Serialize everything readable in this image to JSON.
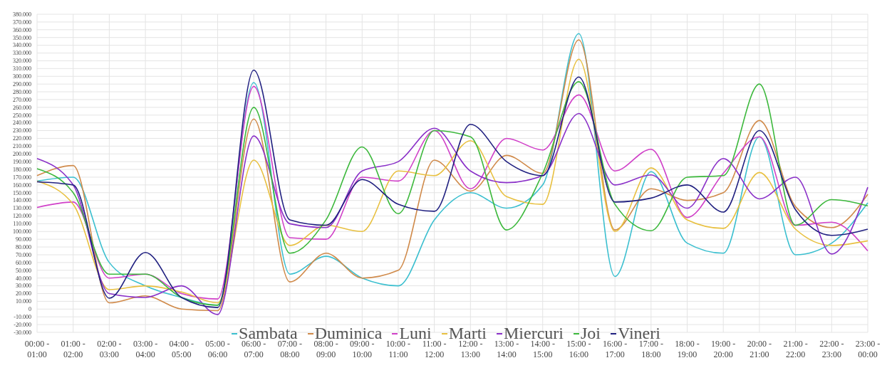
{
  "chart_data": {
    "type": "line",
    "categories": [
      "00:00 - 01:00",
      "01:00 - 02:00",
      "02:00 - 03:00",
      "03:00 - 04:00",
      "04:00 - 05:00",
      "05:00 - 06:00",
      "06:00 - 07:00",
      "07:00 - 08:00",
      "08:00 - 09:00",
      "09:00 - 10:00",
      "10:00 - 11:00",
      "11:00 - 12:00",
      "12:00 - 13:00",
      "13:00 - 14:00",
      "14:00 - 15:00",
      "15:00 - 16:00",
      "16:00 - 17:00",
      "17:00 - 18:00",
      "18:00 - 19:00",
      "19:00 - 20:00",
      "20:00 - 21:00",
      "21:00 - 22:00",
      "22:00 - 23:00",
      "23:00 - 00:00"
    ],
    "series": [
      {
        "name": "Sambata",
        "color": "#3bbfcf",
        "values": [
          165000,
          170000,
          60000,
          30000,
          15000,
          5000,
          292000,
          45000,
          68000,
          40000,
          30000,
          115000,
          150000,
          130000,
          160000,
          355000,
          42000,
          177000,
          85000,
          72000,
          222000,
          70000,
          85000,
          137000
        ]
      },
      {
        "name": "Duminica",
        "color": "#d08a4a",
        "values": [
          172000,
          185000,
          8000,
          17000,
          0,
          -2000,
          245000,
          35000,
          72000,
          40000,
          50000,
          192000,
          152000,
          198000,
          175000,
          347000,
          102000,
          155000,
          140000,
          150000,
          243000,
          132000,
          105000,
          148000
        ]
      },
      {
        "name": "Luni",
        "color": "#d040c8",
        "values": [
          131000,
          138000,
          40000,
          45000,
          20000,
          13000,
          287000,
          92000,
          90000,
          170000,
          165000,
          230000,
          155000,
          220000,
          205000,
          276000,
          178000,
          206000,
          118000,
          175000,
          222000,
          108000,
          112000,
          75000
        ]
      },
      {
        "name": "Marti",
        "color": "#e8c040",
        "values": [
          165000,
          135000,
          25000,
          30000,
          22000,
          8000,
          192000,
          82000,
          108000,
          100000,
          178000,
          172000,
          217000,
          145000,
          135000,
          322000,
          100000,
          182000,
          115000,
          104000,
          176000,
          103000,
          82000,
          88000
        ]
      },
      {
        "name": "Miercuri",
        "color": "#8a30c8",
        "values": [
          194000,
          160000,
          20000,
          15000,
          30000,
          -7000,
          223000,
          110000,
          105000,
          178000,
          190000,
          233000,
          178000,
          163000,
          172000,
          252000,
          160000,
          173000,
          130000,
          194000,
          142000,
          170000,
          71000,
          157000
        ]
      },
      {
        "name": "Joi",
        "color": "#3cb83c",
        "values": [
          181000,
          150000,
          45000,
          45000,
          15000,
          5000,
          260000,
          72000,
          115000,
          209000,
          123000,
          230000,
          222000,
          102000,
          175000,
          293000,
          135000,
          101000,
          170000,
          172000,
          290000,
          108000,
          141000,
          133000
        ]
      },
      {
        "name": "Vineri",
        "color": "#202080",
        "values": [
          164000,
          160000,
          14000,
          73000,
          15000,
          2000,
          308000,
          115000,
          108000,
          167000,
          135000,
          126000,
          238000,
          190000,
          172000,
          299000,
          138000,
          143000,
          160000,
          125000,
          230000,
          128000,
          95000,
          103000
        ]
      }
    ],
    "ylim": [
      -30000,
      380000
    ],
    "yticks": [
      {
        "value": -30000,
        "label": "-30.000"
      },
      {
        "value": -20000,
        "label": "-20.000"
      },
      {
        "value": -10000,
        "label": "-10.000"
      },
      0,
      {
        "value": 10000,
        "label": "10.000"
      },
      {
        "value": 20000,
        "label": "20.000"
      },
      {
        "value": 30000,
        "label": "30.000"
      },
      {
        "value": 40000,
        "label": "40.000"
      },
      {
        "value": 50000,
        "label": "50.000"
      },
      {
        "value": 60000,
        "label": "60.000"
      },
      {
        "value": 70000,
        "label": "70.000"
      },
      {
        "value": 80000,
        "label": "80.000"
      },
      {
        "value": 90000,
        "label": "90.000"
      },
      {
        "value": 100000,
        "label": "100.000"
      },
      {
        "value": 110000,
        "label": "110.000"
      },
      {
        "value": 120000,
        "label": "120.000"
      },
      {
        "value": 130000,
        "label": "130.000"
      },
      {
        "value": 140000,
        "label": "140.000"
      },
      {
        "value": 150000,
        "label": "150.000"
      },
      {
        "value": 160000,
        "label": "160.000"
      },
      {
        "value": 170000,
        "label": "170.000"
      },
      {
        "value": 180000,
        "label": "180.000"
      },
      {
        "value": 190000,
        "label": "190.000"
      },
      {
        "value": 200000,
        "label": "200.000"
      },
      {
        "value": 210000,
        "label": "210.000"
      },
      {
        "value": 220000,
        "label": "220.000"
      },
      {
        "value": 230000,
        "label": "230.000"
      },
      {
        "value": 240000,
        "label": "240.000"
      },
      {
        "value": 250000,
        "label": "250.000"
      },
      {
        "value": 260000,
        "label": "260.000"
      },
      {
        "value": 270000,
        "label": "270.000"
      },
      {
        "value": 280000,
        "label": "280.000"
      },
      {
        "value": 290000,
        "label": "290.000"
      },
      {
        "value": 300000,
        "label": "300.000"
      },
      {
        "value": 310000,
        "label": "310.000"
      },
      {
        "value": 320000,
        "label": "320.000"
      },
      {
        "value": 330000,
        "label": "330.000"
      },
      {
        "value": 340000,
        "label": "340.000"
      },
      {
        "value": 350000,
        "label": "350.000"
      },
      {
        "value": 360000,
        "label": "360.000"
      },
      {
        "value": 370000,
        "label": "370.000"
      },
      {
        "value": 380000,
        "label": "380.000"
      }
    ],
    "grid": true,
    "legend": "bottom",
    "marker": "none",
    "line_style": "solid"
  }
}
